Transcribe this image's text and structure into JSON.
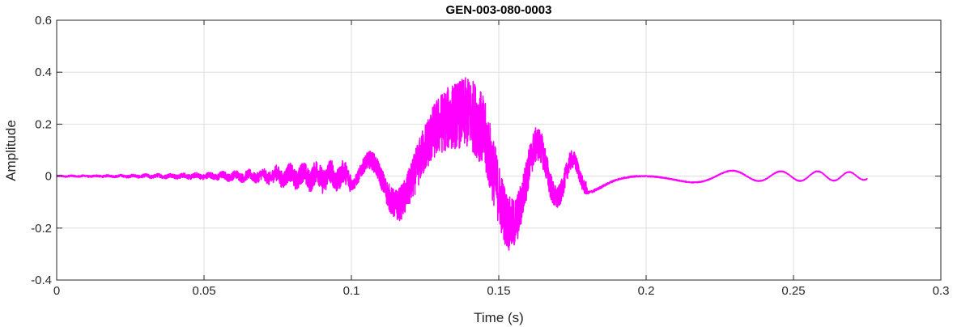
{
  "chart_data": {
    "type": "line",
    "title": "GEN-003-080-0003",
    "xlabel": "Time (s)",
    "ylabel": "Amplitude",
    "xlim": [
      0,
      0.3
    ],
    "ylim": [
      -0.4,
      0.6
    ],
    "xticks": [
      0,
      0.05,
      0.1,
      0.15,
      0.2,
      0.25,
      0.3
    ],
    "xtick_labels": [
      "0",
      "0.05",
      "0.1",
      "0.15",
      "0.2",
      "0.25",
      "0.3"
    ],
    "yticks": [
      -0.4,
      -0.2,
      0,
      0.2,
      0.4,
      0.6
    ],
    "ytick_labels": [
      "-0.4",
      "-0.2",
      "0",
      "0.2",
      "0.4",
      "0.6"
    ],
    "grid": true,
    "line_color": "#ff00ff",
    "series": [
      {
        "x": [
          0,
          0.275
        ],
        "y": [
          0,
          0
        ],
        "envelope_time": [
          0,
          0.02,
          0.05,
          0.07,
          0.075,
          0.085,
          0.09,
          0.1,
          0.11,
          0.12,
          0.13,
          0.14,
          0.145,
          0.15,
          0.16,
          0.17,
          0.18,
          0.19,
          0.2,
          0.22,
          0.24,
          0.26,
          0.275
        ],
        "envelope_amp": [
          0.004,
          0.006,
          0.015,
          0.03,
          0.045,
          0.06,
          0.07,
          0.06,
          0.12,
          0.22,
          0.33,
          0.4,
          0.41,
          0.35,
          0.22,
          0.13,
          0.07,
          0.04,
          0.03,
          0.025,
          0.02,
          0.02,
          0.015
        ]
      }
    ]
  }
}
